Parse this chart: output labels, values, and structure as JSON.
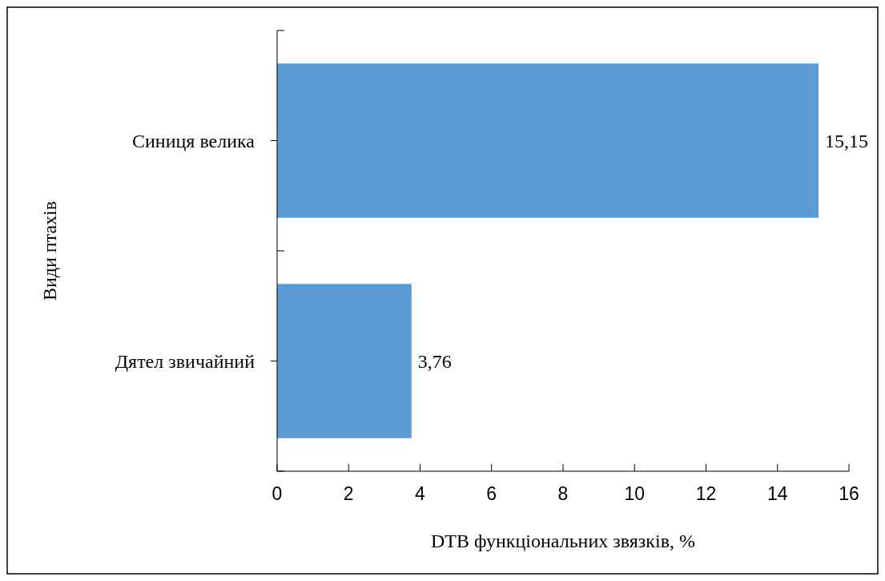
{
  "chart_data": {
    "type": "bar",
    "orientation": "horizontal",
    "xlabel": "DTB функціональних звязків, %",
    "ylabel": "Види птахів",
    "categories": [
      "Синиця велика",
      "Дятел звичайний"
    ],
    "values": [
      15.15,
      3.76
    ],
    "value_labels": [
      "15,15",
      "3,76"
    ],
    "color": "#5b9bd5",
    "xlim": [
      0,
      16
    ],
    "xticks": [
      0,
      2,
      4,
      6,
      8,
      10,
      12,
      14,
      16
    ],
    "grid": false
  }
}
